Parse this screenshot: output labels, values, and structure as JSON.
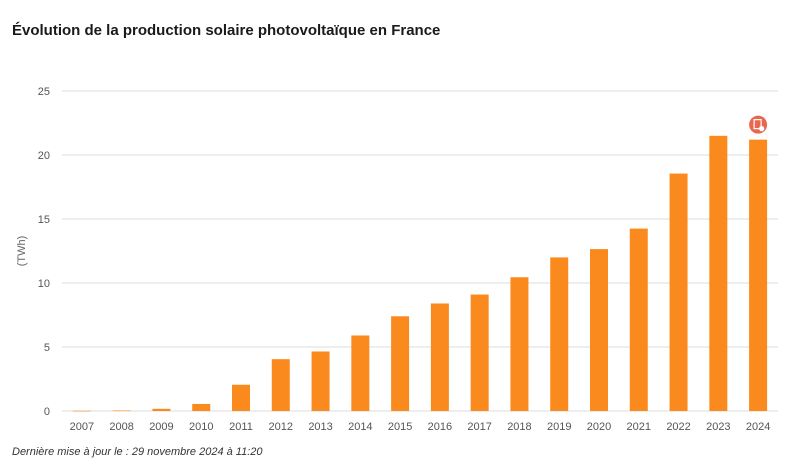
{
  "title": "Évolution de la production solaire photovoltaïque en France",
  "footnote": "Dernière mise à jour le : 29 novembre 2024 à 11:20",
  "colors": {
    "bar": "#fb8a1e",
    "grid": "#dcdcdc",
    "badge": "#e8674e"
  },
  "badge_icon": "document-lock-icon",
  "chart_data": {
    "type": "bar",
    "ylabel": "(TWh)",
    "xlabel": "",
    "ylim": [
      0,
      25
    ],
    "yticks": [
      0,
      5,
      10,
      15,
      20,
      25
    ],
    "grid": true,
    "categories": [
      "2007",
      "2008",
      "2009",
      "2010",
      "2011",
      "2012",
      "2013",
      "2014",
      "2015",
      "2016",
      "2017",
      "2018",
      "2019",
      "2020",
      "2021",
      "2022",
      "2023",
      "2024"
    ],
    "values": [
      0.02,
      0.04,
      0.17,
      0.55,
      2.05,
      4.05,
      4.65,
      5.9,
      7.4,
      8.4,
      9.1,
      10.45,
      12.0,
      12.65,
      14.25,
      18.55,
      21.5,
      21.2
    ]
  }
}
